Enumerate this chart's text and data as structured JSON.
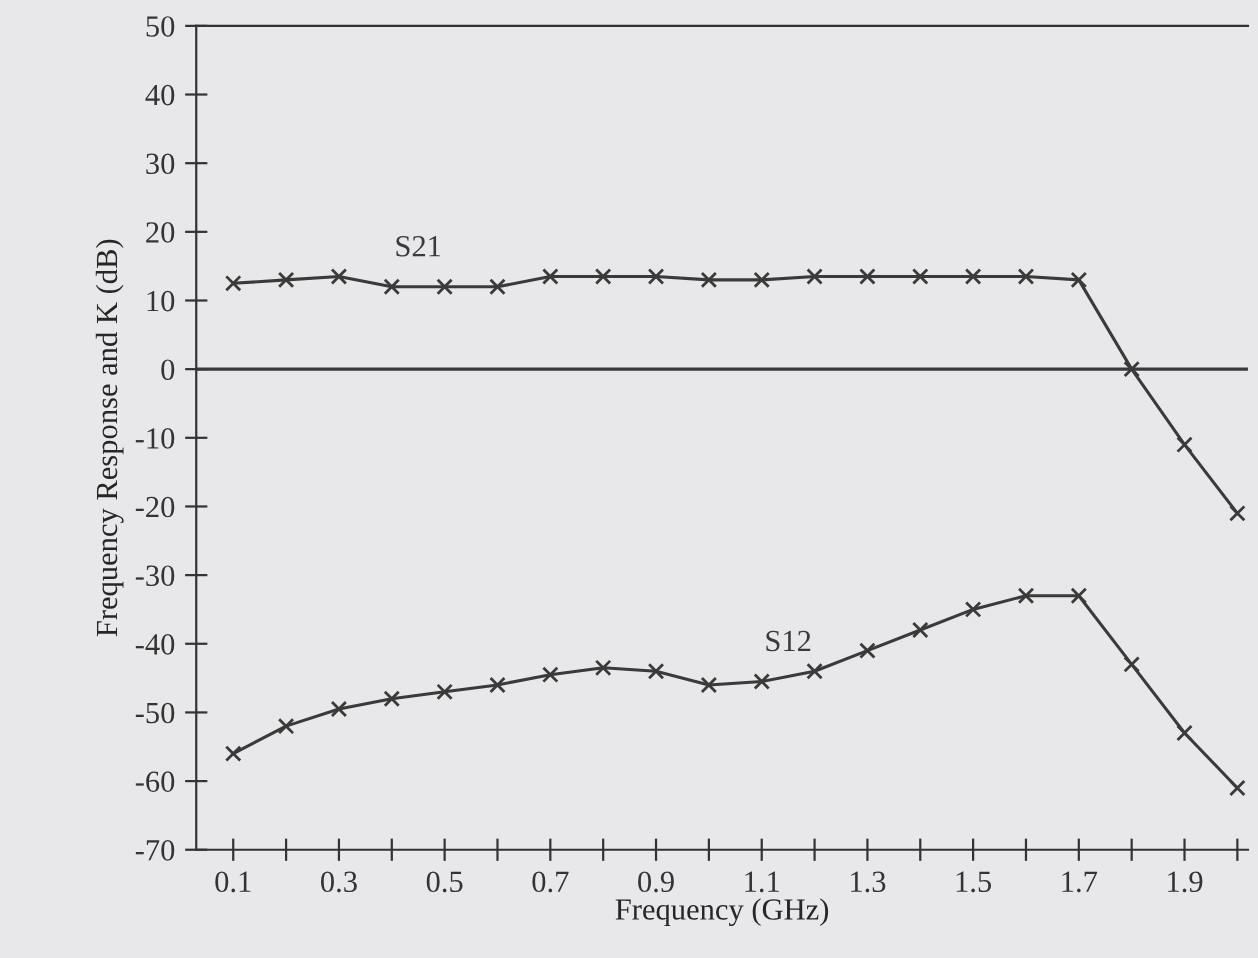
{
  "chart_data": {
    "type": "line",
    "xlabel": "Frequency (GHz)",
    "ylabel": "Frequency Response and K (dB)",
    "x": [
      0.1,
      0.2,
      0.3,
      0.4,
      0.5,
      0.6,
      0.7,
      0.8,
      0.9,
      1.0,
      1.1,
      1.2,
      1.3,
      1.4,
      1.5,
      1.6,
      1.7,
      1.8,
      1.9,
      2.0
    ],
    "series": [
      {
        "name": "S21",
        "color": "#3a3a3a",
        "marker": "cross",
        "values": [
          12.5,
          13,
          13.5,
          12,
          12,
          12,
          13.5,
          13.5,
          13.5,
          13,
          13,
          13.5,
          13.5,
          13.5,
          13.5,
          13.5,
          13,
          0,
          -11,
          -21
        ]
      },
      {
        "name": "S12",
        "color": "#3a3a3a",
        "marker": "cross",
        "values": [
          -56,
          -52,
          -49.5,
          -48,
          -47,
          -46,
          -44.5,
          -43.5,
          -44,
          -46,
          -45.5,
          -44,
          -41,
          -38,
          -35,
          -33,
          -33,
          -43,
          -53,
          -61
        ]
      }
    ],
    "xlim": [
      0.03,
      2.02
    ],
    "xticks": [
      0.1,
      {
        "value": 0.2,
        "label": null
      },
      0.3,
      {
        "value": 0.4,
        "label": null
      },
      0.5,
      {
        "value": 0.6,
        "label": null
      },
      0.7,
      {
        "value": 0.8,
        "label": null
      },
      0.9,
      {
        "value": 1.0,
        "label": null
      },
      1.1,
      {
        "value": 1.2,
        "label": null
      },
      1.3,
      {
        "value": 1.4,
        "label": null
      },
      1.5,
      {
        "value": 1.6,
        "label": null
      },
      1.7,
      {
        "value": 1.8,
        "label": null
      },
      1.9,
      {
        "value": 2.0,
        "label": null
      }
    ],
    "ylim": [
      -70,
      50
    ],
    "yticks": [
      -70,
      -60,
      -50,
      -40,
      -30,
      -20,
      -10,
      0,
      10,
      20,
      30,
      40,
      50
    ],
    "ref_lines": [
      {
        "axis": "y",
        "value": 0,
        "color": "#3a3a3a"
      }
    ],
    "grid": false,
    "legend": false,
    "line_style": "solid"
  }
}
